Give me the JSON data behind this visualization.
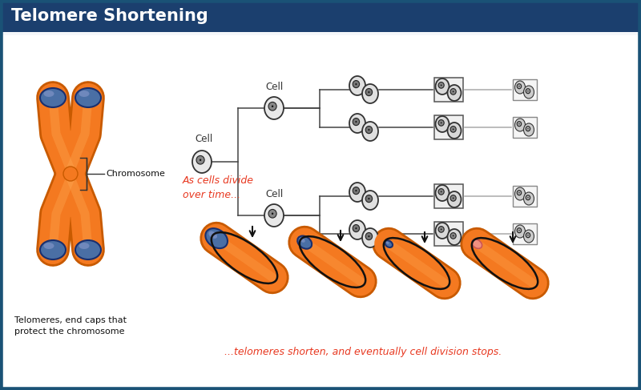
{
  "title": "Telomere Shortening",
  "title_bg": "#1b3f6e",
  "title_color": "#ffffff",
  "bg_color": "#f5f7fa",
  "border_color": "#1a5276",
  "orange_color": "#f47920",
  "orange_dark": "#c85a00",
  "blue_telomere": "#4a6fa5",
  "blue_dark": "#1a2f6e",
  "cell_fill": "#e8e8e8",
  "cell_fill2": "#d0d0d0",
  "cell_fill3": "#c0c0c0",
  "red_text": "#e83820",
  "line_color": "#444444",
  "gray_line": "#888888",
  "text1": "As cells divide\nover time...",
  "text2": "...telomeres shorten, and eventually cell division stops.",
  "label_chrom": "Chromosome",
  "label_cell": "Cell",
  "label_telomere": "Telomeres, end caps that\nprotect the chromosome"
}
